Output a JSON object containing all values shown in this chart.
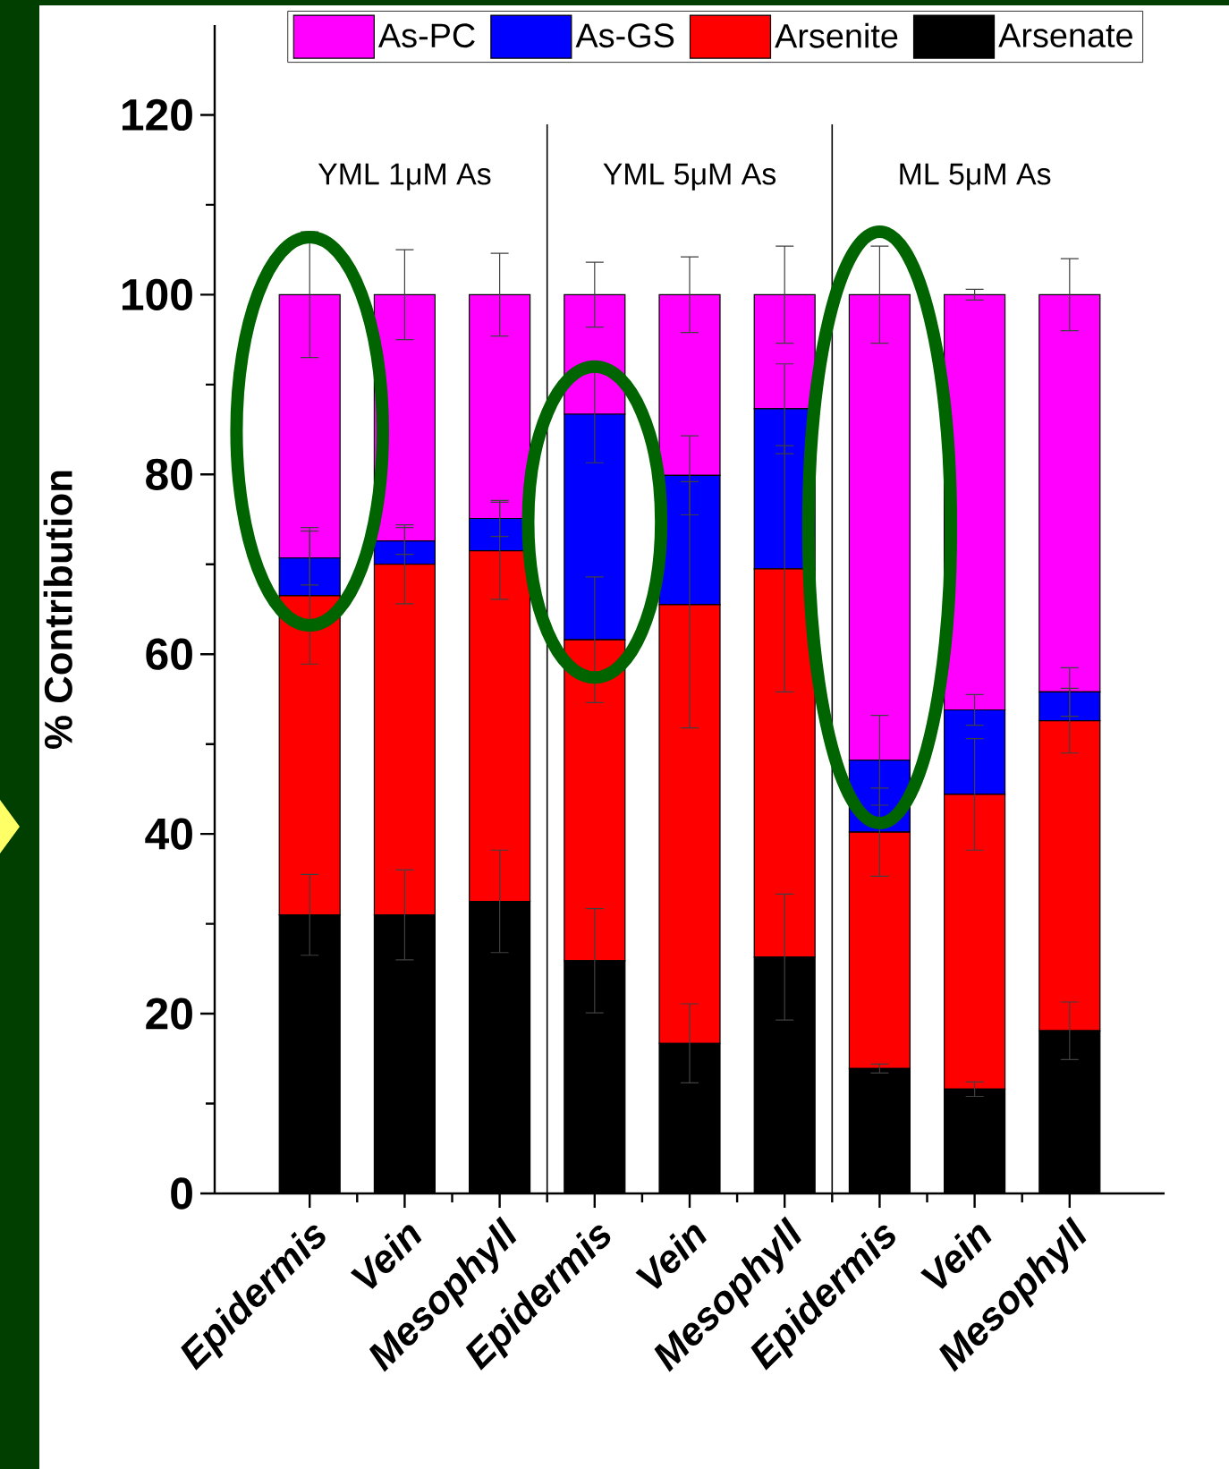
{
  "chart_data": {
    "type": "bar",
    "stacked": true,
    "ylabel": "% Contribution",
    "categories": [
      "Epidermis",
      "Vein",
      "Mesophyll",
      "Epidermis",
      "Vein",
      "Mesophyll",
      "Epidermis",
      "Vein",
      "Mesophyll"
    ],
    "series": [
      {
        "name": "Arsenate",
        "color": "#000000",
        "values": [
          31,
          31,
          32.5,
          25.9,
          16.7,
          26.3,
          13.9,
          11.6,
          18.1
        ],
        "errors": [
          4.5,
          5,
          5.7,
          5.8,
          4.4,
          7,
          0.5,
          0.8,
          3.2
        ]
      },
      {
        "name": "Arsenite",
        "color": "#ff0000",
        "values": [
          35.5,
          39,
          39,
          35.7,
          48.8,
          43.2,
          26.3,
          32.8,
          34.5
        ],
        "errors": [
          7.6,
          4.4,
          5.4,
          7,
          13.7,
          13.7,
          4.9,
          6.2,
          3.6
        ]
      },
      {
        "name": "As-GS",
        "color": "#0000ff",
        "values": [
          4.2,
          2.6,
          3.6,
          25.1,
          14.4,
          17.8,
          8,
          9.4,
          3.2
        ],
        "errors": [
          3,
          1.5,
          2,
          5.4,
          4.4,
          5,
          5,
          1.7,
          2.7
        ]
      },
      {
        "name": "As-PC",
        "color": "#ff00ff",
        "values": [
          29.3,
          27.4,
          24.9,
          13.3,
          20.1,
          12.7,
          51.8,
          46.2,
          44.2
        ],
        "errors": [
          7,
          5,
          4.6,
          3.6,
          4.2,
          5.4,
          5.4,
          0.6,
          4
        ]
      }
    ],
    "ylim": [
      0,
      130
    ],
    "yticks": [
      0,
      20,
      40,
      60,
      80,
      100,
      120
    ],
    "annotations": [
      "YML 1μM As",
      "YML 5μM As",
      "ML 5μM As"
    ],
    "legend": "top"
  }
}
